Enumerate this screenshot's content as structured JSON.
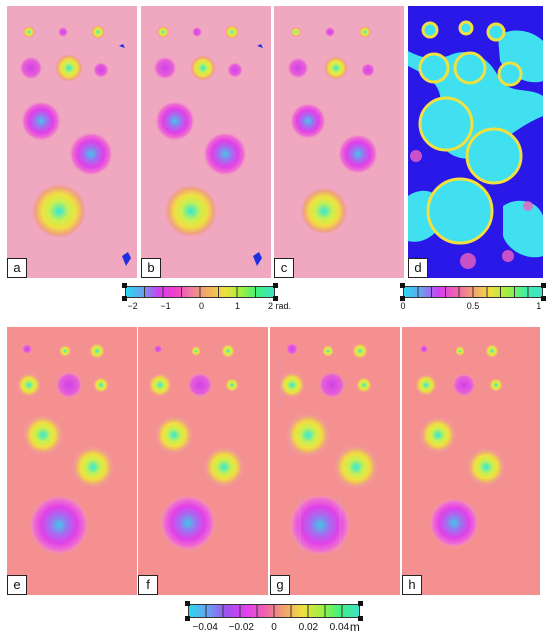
{
  "top_row": {
    "panels": [
      {
        "label": "a"
      },
      {
        "label": "b"
      },
      {
        "label": "c"
      },
      {
        "label": "d"
      }
    ]
  },
  "bottom_row": {
    "panels": [
      {
        "label": "e"
      },
      {
        "label": "f"
      },
      {
        "label": "g"
      },
      {
        "label": "h"
      }
    ]
  },
  "colorbars": {
    "phase": {
      "ticks": [
        "−2",
        "−1",
        "0",
        "1",
        "2 rad."
      ],
      "gradient": [
        "#2ad8f0",
        "#6aa0f0",
        "#d040f0",
        "#f040c8",
        "#f080a0",
        "#f0b060",
        "#f0e040",
        "#a0f040",
        "#40f080",
        "#40e0c8"
      ]
    },
    "coherence": {
      "ticks": [
        "0",
        "0.5",
        "1"
      ],
      "gradient": [
        "#2ad8f0",
        "#6aa0f0",
        "#d040f0",
        "#f060b0",
        "#f0a070",
        "#f0e040",
        "#a0f040",
        "#40f0a0",
        "#40e0d0"
      ]
    },
    "displacement": {
      "ticks": [
        "−0.04",
        "−0.02",
        "0",
        "0.02",
        "0.04"
      ],
      "unit": "m",
      "gradient": [
        "#2ad8f0",
        "#6aa0f0",
        "#a050f0",
        "#e040f0",
        "#f060b0",
        "#f0a070",
        "#f0e040",
        "#a0f040",
        "#40f080",
        "#40e0c8"
      ]
    }
  }
}
